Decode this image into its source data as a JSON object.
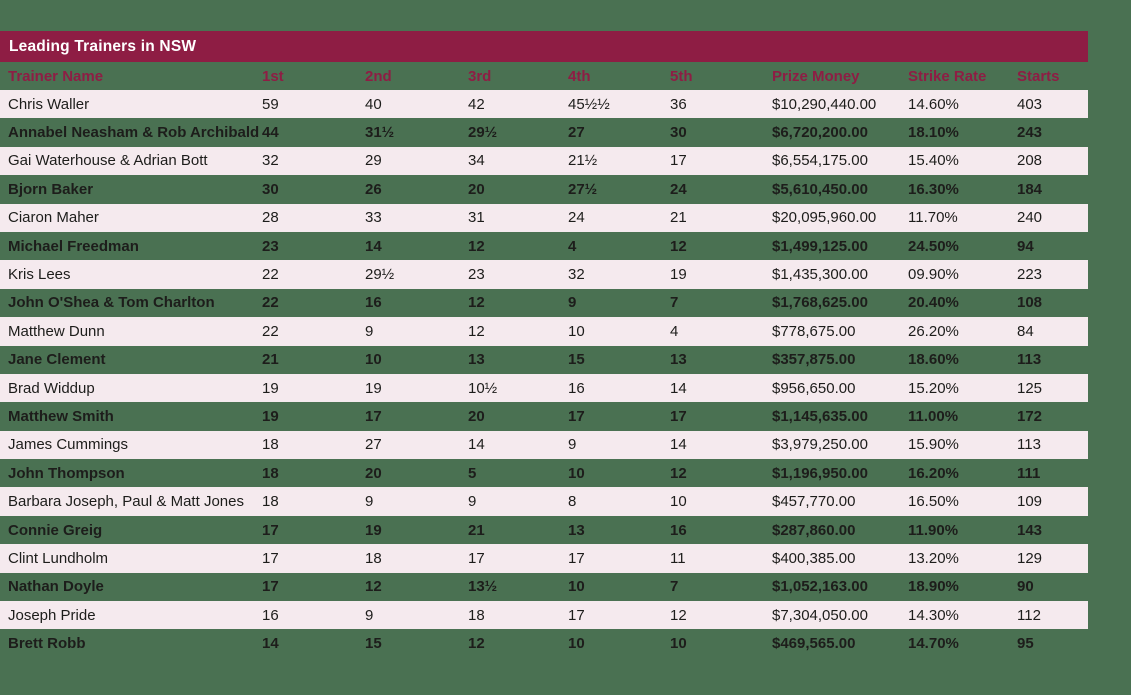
{
  "title_bar": {
    "title": "Leading Trainers in NSW"
  },
  "colors": {
    "background_green": "#4a7152",
    "bar_maroon": "#8e1d44",
    "row_pink": "#f5eaee",
    "header_text_maroon": "#8e1d44",
    "title_text": "#ffffff",
    "body_text": "#1d1d1b"
  },
  "chart_data": {
    "type": "table",
    "title": "Leading Trainers in NSW",
    "columns": [
      "Trainer Name",
      "1st",
      "2nd",
      "3rd",
      "4th",
      "5th",
      "Prize Money",
      "Strike Rate",
      "Starts"
    ],
    "rows": [
      [
        "Chris Waller",
        "59",
        "40",
        "42",
        "45½½",
        "36",
        "$10,290,440.00",
        "14.60%",
        "403"
      ],
      [
        "Annabel Neasham & Rob Archibald",
        "44",
        "31½",
        "29½",
        "27",
        "30",
        "$6,720,200.00",
        "18.10%",
        "243"
      ],
      [
        "Gai Waterhouse & Adrian Bott",
        "32",
        "29",
        "34",
        "21½",
        "17",
        "$6,554,175.00",
        "15.40%",
        "208"
      ],
      [
        "Bjorn Baker",
        "30",
        "26",
        "20",
        "27½",
        "24",
        "$5,610,450.00",
        "16.30%",
        "184"
      ],
      [
        "Ciaron Maher",
        "28",
        "33",
        "31",
        "24",
        "21",
        "$20,095,960.00",
        "11.70%",
        "240"
      ],
      [
        "Michael Freedman",
        "23",
        "14",
        "12",
        "4",
        "12",
        "$1,499,125.00",
        "24.50%",
        "94"
      ],
      [
        "Kris Lees",
        "22",
        "29½",
        "23",
        "32",
        "19",
        "$1,435,300.00",
        "09.90%",
        "223"
      ],
      [
        "John O'Shea & Tom Charlton",
        "22",
        "16",
        "12",
        "9",
        "7",
        "$1,768,625.00",
        "20.40%",
        "108"
      ],
      [
        "Matthew Dunn",
        "22",
        "9",
        "12",
        "10",
        "4",
        "$778,675.00",
        "26.20%",
        "84"
      ],
      [
        "Jane Clement",
        "21",
        "10",
        "13",
        "15",
        "13",
        "$357,875.00",
        "18.60%",
        "113"
      ],
      [
        "Brad Widdup",
        "19",
        "19",
        "10½",
        "16",
        "14",
        "$956,650.00",
        "15.20%",
        "125"
      ],
      [
        "Matthew Smith",
        "19",
        "17",
        "20",
        "17",
        "17",
        "$1,145,635.00",
        "11.00%",
        "172"
      ],
      [
        "James Cummings",
        "18",
        "27",
        "14",
        "9",
        "14",
        "$3,979,250.00",
        "15.90%",
        "113"
      ],
      [
        "John Thompson",
        "18",
        "20",
        "5",
        "10",
        "12",
        "$1,196,950.00",
        "16.20%",
        "111"
      ],
      [
        "Barbara Joseph, Paul & Matt Jones",
        "18",
        "9",
        "9",
        "8",
        "10",
        "$457,770.00",
        "16.50%",
        "109"
      ],
      [
        "Connie Greig",
        "17",
        "19",
        "21",
        "13",
        "16",
        "$287,860.00",
        "11.90%",
        "143"
      ],
      [
        "Clint Lundholm",
        "17",
        "18",
        "17",
        "17",
        "11",
        "$400,385.00",
        "13.20%",
        "129"
      ],
      [
        "Nathan Doyle",
        "17",
        "12",
        "13½",
        "10",
        "7",
        "$1,052,163.00",
        "18.90%",
        "90"
      ],
      [
        "Joseph Pride",
        "16",
        "9",
        "18",
        "17",
        "12",
        "$7,304,050.00",
        "14.30%",
        "112"
      ],
      [
        "Brett Robb",
        "14",
        "15",
        "12",
        "10",
        "10",
        "$469,565.00",
        "14.70%",
        "95"
      ]
    ]
  }
}
